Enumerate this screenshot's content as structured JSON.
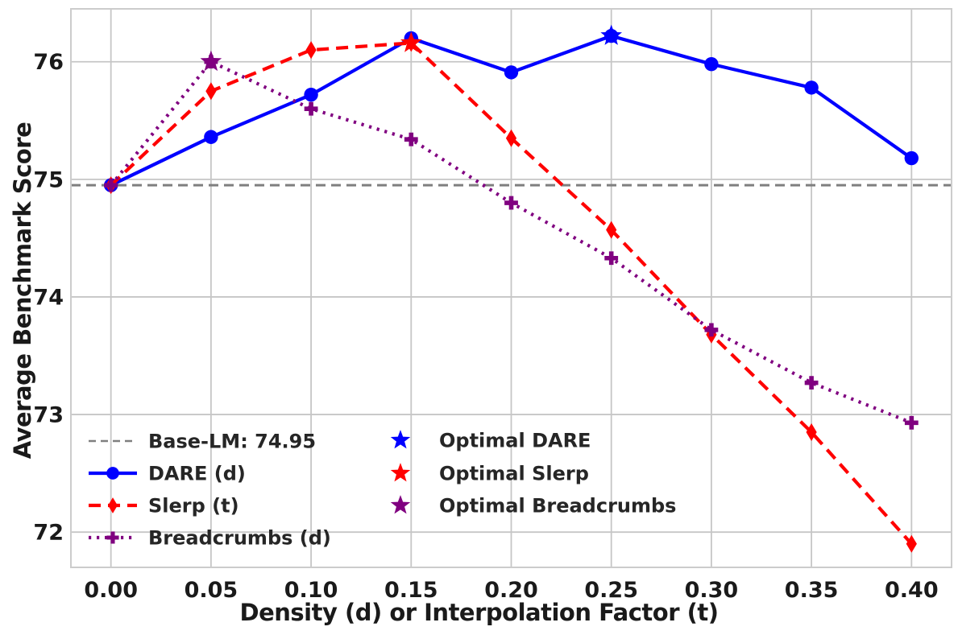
{
  "chart_data": {
    "type": "line",
    "xlabel": "Density (d) or Interpolation Factor (t)",
    "ylabel": "Average Benchmark Score",
    "x": [
      0.0,
      0.05,
      0.1,
      0.15,
      0.2,
      0.25,
      0.3,
      0.35,
      0.4
    ],
    "x_tick_labels": [
      "0.00",
      "0.05",
      "0.10",
      "0.15",
      "0.20",
      "0.25",
      "0.30",
      "0.35",
      "0.40"
    ],
    "y_ticks": [
      72,
      73,
      74,
      75,
      76
    ],
    "y_tick_labels": [
      "72",
      "73",
      "74",
      "75",
      "76"
    ],
    "xlim": [
      -0.02,
      0.42
    ],
    "ylim": [
      71.7,
      76.45
    ],
    "grid": true,
    "legend_position": "lower left",
    "baseline": {
      "label": "Base-LM: 74.95",
      "value": 74.95,
      "color": "#7f7f7f",
      "line": "dashed"
    },
    "series": [
      {
        "name": "DARE (d)",
        "color": "#0000ff",
        "line": "solid",
        "marker": "circle",
        "values": [
          74.95,
          75.36,
          75.72,
          76.2,
          75.91,
          76.22,
          75.98,
          75.78,
          75.18
        ]
      },
      {
        "name": "Slerp (t)",
        "color": "#ff0000",
        "line": "dashed",
        "marker": "thin-diamond",
        "values": [
          74.95,
          75.75,
          76.1,
          76.16,
          75.35,
          74.57,
          73.68,
          72.85,
          71.9
        ]
      },
      {
        "name": "Breadcrumbs (d)",
        "color": "#800080",
        "line": "dotted",
        "marker": "plus",
        "values": [
          74.95,
          76.0,
          75.6,
          75.34,
          74.8,
          74.33,
          73.72,
          73.27,
          72.93
        ]
      }
    ],
    "optimal_points": [
      {
        "name": "Optimal DARE",
        "color": "#0000ff",
        "marker": "star",
        "x": 0.25,
        "y": 76.22
      },
      {
        "name": "Optimal Slerp",
        "color": "#ff0000",
        "marker": "star",
        "x": 0.15,
        "y": 76.16
      },
      {
        "name": "Optimal Breadcrumbs",
        "color": "#800080",
        "marker": "star",
        "x": 0.05,
        "y": 76.0
      }
    ]
  }
}
